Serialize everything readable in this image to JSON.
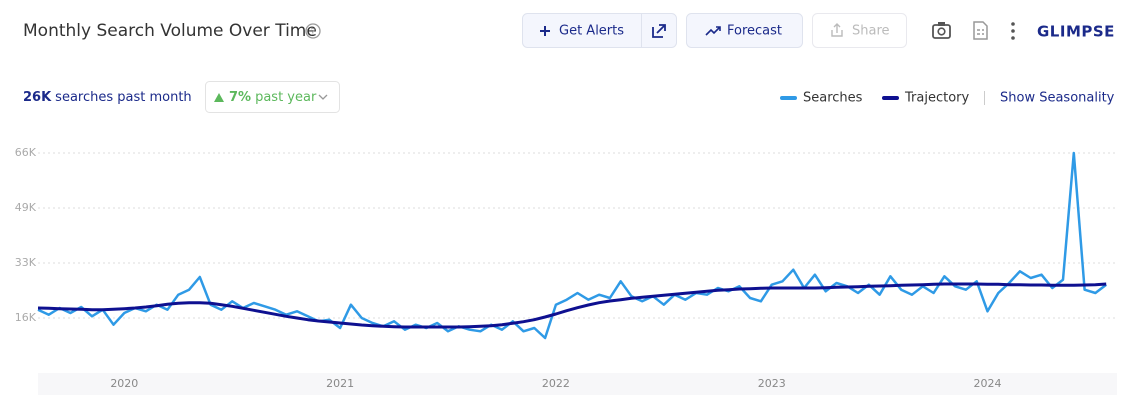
{
  "header": {
    "title": "Monthly Search Volume Over Time",
    "buttons": [
      "Get Alerts",
      "Forecast",
      "Share"
    ],
    "logo": "GLIMPSE"
  },
  "stats": {
    "volume": "26K",
    "volume_label": "searches past month",
    "growth": "7%",
    "growth_label": "past year"
  },
  "show_seasonality": "Show Seasonality",
  "chart_data": {
    "type": "line",
    "x": [
      2019.6,
      2019.65,
      2019.7,
      2019.75,
      2019.8,
      2019.85,
      2019.9,
      2019.95,
      2020.0,
      2020.05,
      2020.1,
      2020.15,
      2020.2,
      2020.25,
      2020.3,
      2020.35,
      2020.4,
      2020.45,
      2020.5,
      2020.55,
      2020.6,
      2020.65,
      2020.7,
      2020.75,
      2020.8,
      2020.85,
      2020.9,
      2020.95,
      2021.0,
      2021.05,
      2021.1,
      2021.15,
      2021.2,
      2021.25,
      2021.3,
      2021.35,
      2021.4,
      2021.45,
      2021.5,
      2021.55,
      2021.6,
      2021.65,
      2021.7,
      2021.75,
      2021.8,
      2021.85,
      2021.9,
      2021.95,
      2022.0,
      2022.05,
      2022.1,
      2022.15,
      2022.2,
      2022.25,
      2022.3,
      2022.35,
      2022.4,
      2022.45,
      2022.5,
      2022.55,
      2022.6,
      2022.65,
      2022.7,
      2022.75,
      2022.8,
      2022.85,
      2022.9,
      2022.95,
      2023.0,
      2023.05,
      2023.1,
      2023.15,
      2023.2,
      2023.25,
      2023.3,
      2023.35,
      2023.4,
      2023.45,
      2023.5,
      2023.55,
      2023.6,
      2023.65,
      2023.7,
      2023.75,
      2023.8,
      2023.85,
      2023.9,
      2023.95,
      2024.0,
      2024.05,
      2024.1,
      2024.15,
      2024.2,
      2024.25,
      2024.3,
      2024.35,
      2024.4,
      2024.45,
      2024.5,
      2024.55
    ],
    "xlim": [
      2019.6,
      2024.6
    ],
    "xticks": [
      2020,
      2021,
      2022,
      2023,
      2024
    ],
    "ylim": [
      0,
      66000
    ],
    "yticks": [
      {
        "value": 16500,
        "label": "16K"
      },
      {
        "value": 33000,
        "label": "33K"
      },
      {
        "value": 49500,
        "label": "49K"
      },
      {
        "value": 66000,
        "label": "66K"
      }
    ],
    "grid": true,
    "series": [
      {
        "name": "Searches",
        "color": "#2f9ae6",
        "values": [
          19000,
          17500,
          19500,
          18000,
          19800,
          17000,
          19000,
          14500,
          18000,
          19500,
          18500,
          20500,
          19000,
          23500,
          25000,
          28800,
          20500,
          19000,
          21500,
          19500,
          21000,
          20000,
          19000,
          17500,
          18500,
          17000,
          15500,
          16000,
          13500,
          20500,
          16500,
          15000,
          14000,
          15500,
          13000,
          14500,
          13500,
          15000,
          12500,
          14000,
          13000,
          12500,
          14500,
          13000,
          15500,
          12500,
          13500,
          10500,
          20500,
          22000,
          24000,
          22000,
          23500,
          22500,
          27500,
          23000,
          21500,
          23000,
          20500,
          23500,
          22000,
          24000,
          23500,
          25500,
          24500,
          26000,
          22500,
          21500,
          26500,
          27500,
          31000,
          25500,
          29500,
          24500,
          27000,
          26000,
          24000,
          26500,
          23500,
          29000,
          25000,
          23500,
          26000,
          24000,
          29000,
          26000,
          25000,
          27500,
          18500,
          24000,
          27000,
          30500,
          28500,
          29500,
          25500,
          28000,
          66000,
          25000,
          24000,
          26500
        ]
      },
      {
        "name": "Trajectory",
        "color": "#0e1090",
        "values": [
          19500,
          19400,
          19300,
          19200,
          19100,
          19000,
          19000,
          19100,
          19300,
          19500,
          19800,
          20200,
          20600,
          20900,
          21100,
          21100,
          20900,
          20500,
          20000,
          19400,
          18800,
          18200,
          17600,
          17000,
          16500,
          16000,
          15600,
          15300,
          15000,
          14700,
          14400,
          14200,
          14000,
          13900,
          13800,
          13800,
          13800,
          13800,
          13800,
          13800,
          13900,
          14000,
          14200,
          14500,
          14900,
          15400,
          16000,
          16800,
          17700,
          18700,
          19600,
          20400,
          21100,
          21600,
          22000,
          22400,
          22700,
          23000,
          23300,
          23600,
          23900,
          24200,
          24500,
          24800,
          25000,
          25200,
          25300,
          25400,
          25500,
          25500,
          25500,
          25500,
          25500,
          25600,
          25700,
          25800,
          25900,
          26000,
          26100,
          26200,
          26300,
          26400,
          26500,
          26600,
          26700,
          26700,
          26700,
          26700,
          26600,
          26600,
          26500,
          26500,
          26400,
          26400,
          26300,
          26300,
          26300,
          26400,
          26500,
          26700
        ]
      }
    ]
  }
}
